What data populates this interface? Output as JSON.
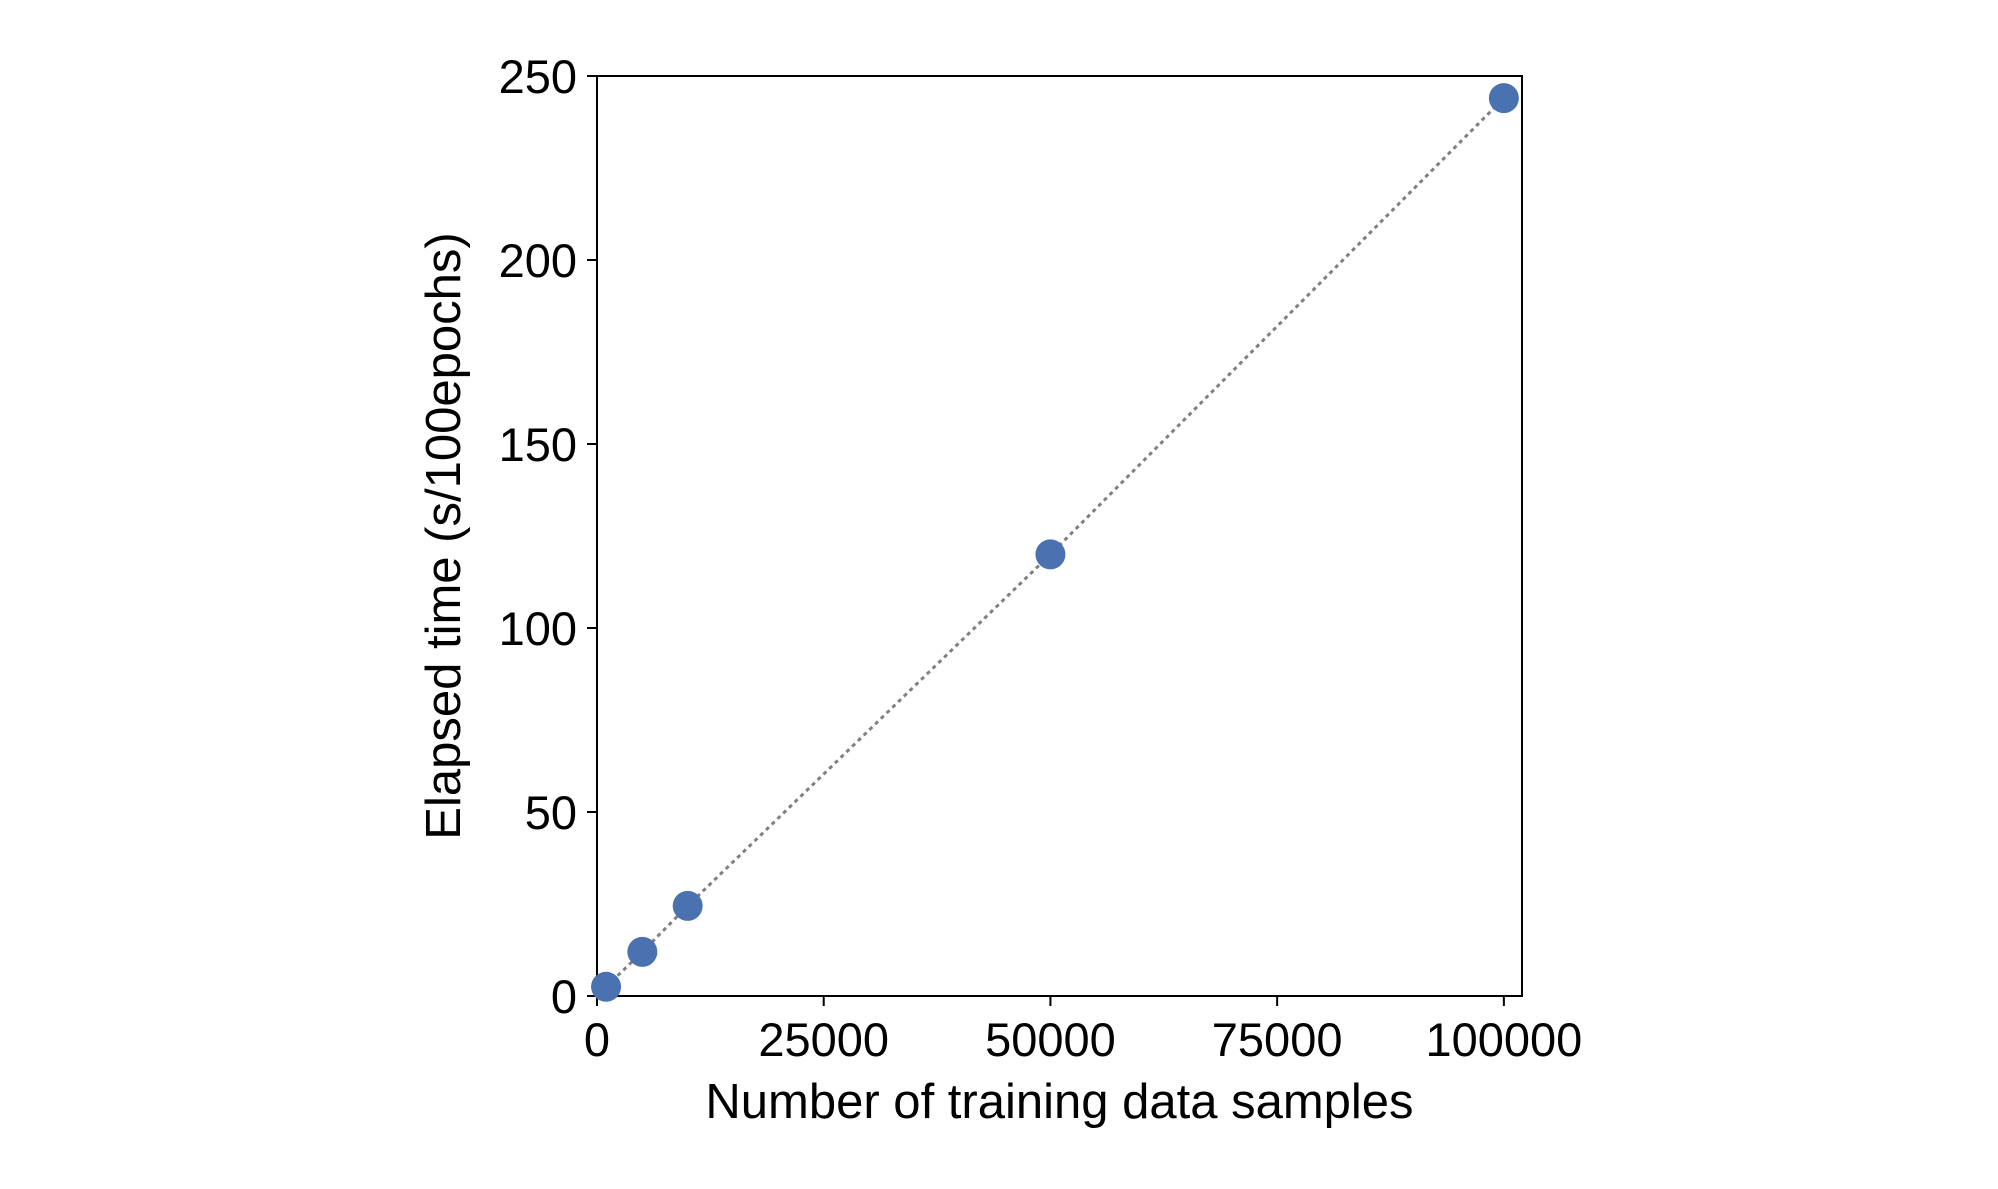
{
  "chart_data": {
    "type": "scatter",
    "title": "",
    "xlabel": "Number of training data samples",
    "ylabel": "Elapsed time (s/100epochs)",
    "xlim": [
      0,
      102000
    ],
    "ylim": [
      0,
      250
    ],
    "xticks": [
      0,
      25000,
      50000,
      75000,
      100000
    ],
    "xtick_labels": [
      "0",
      "25000",
      "50000",
      "75000",
      "100000"
    ],
    "yticks": [
      0,
      50,
      100,
      150,
      200,
      250
    ],
    "ytick_labels": [
      "0",
      "50",
      "100",
      "150",
      "200",
      "250"
    ],
    "grid": false,
    "legend": "none",
    "series": [
      {
        "x": [
          1000,
          5000,
          10000,
          50000,
          100000
        ],
        "y": [
          2.5,
          12,
          24.5,
          120,
          244
        ],
        "marker_color": "#4a72b0",
        "line_style": "dotted",
        "line_color": "#808080"
      }
    ]
  }
}
